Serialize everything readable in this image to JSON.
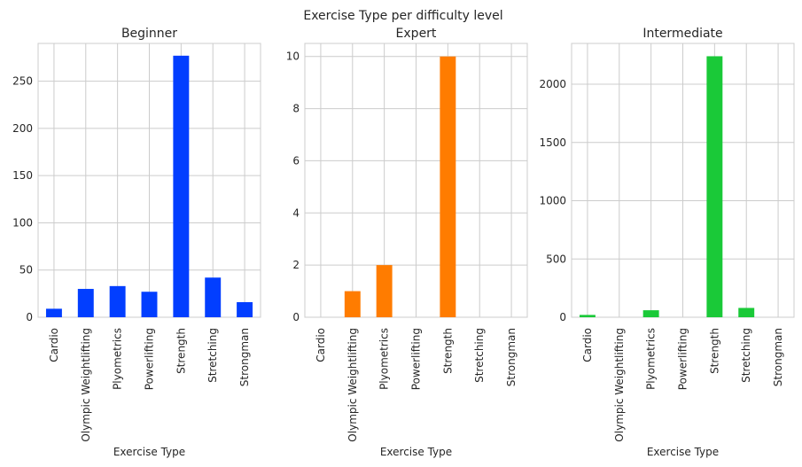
{
  "suptitle": "Exercise Type per difficulty level",
  "chart_data": [
    {
      "type": "bar",
      "title": "Beginner",
      "xlabel": "Exercise Type",
      "ylabel": "",
      "categories": [
        "Cardio",
        "Olympic Weightlifting",
        "Plyometrics",
        "Powerlifting",
        "Strength",
        "Stretching",
        "Strongman"
      ],
      "values": [
        9,
        30,
        33,
        27,
        277,
        42,
        16
      ],
      "ylim": [
        0,
        290
      ],
      "yticks": [
        0,
        50,
        100,
        150,
        200,
        250
      ],
      "color": "#023eff",
      "grid": true
    },
    {
      "type": "bar",
      "title": "Expert",
      "xlabel": "Exercise Type",
      "ylabel": "",
      "categories": [
        "Cardio",
        "Olympic Weightlifting",
        "Plyometrics",
        "Powerlifting",
        "Strength",
        "Stretching",
        "Strongman"
      ],
      "values": [
        0,
        1,
        2,
        0,
        10,
        0,
        0
      ],
      "ylim": [
        0,
        10.5
      ],
      "yticks": [
        0,
        2,
        4,
        6,
        8,
        10
      ],
      "color": "#ff7c00",
      "grid": true
    },
    {
      "type": "bar",
      "title": "Intermediate",
      "xlabel": "Exercise Type",
      "ylabel": "",
      "categories": [
        "Cardio",
        "Olympic Weightlifting",
        "Plyometrics",
        "Powerlifting",
        "Strength",
        "Stretching",
        "Strongman"
      ],
      "values": [
        20,
        0,
        60,
        0,
        2240,
        80,
        0
      ],
      "ylim": [
        0,
        2350
      ],
      "yticks": [
        0,
        500,
        1000,
        1500,
        2000
      ],
      "color": "#1ac938",
      "grid": true
    }
  ]
}
